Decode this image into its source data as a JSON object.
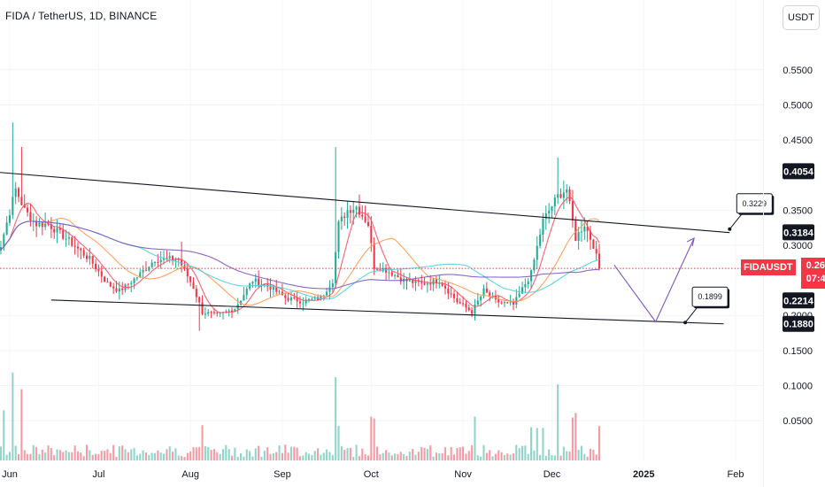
{
  "header": {
    "title": "FIDA / TetherUS, 1D, BINANCE",
    "currency": "USDT"
  },
  "chart_data": {
    "type": "candlestick",
    "symbol": "FIDAUSDT",
    "ylim": [
      0.03,
      0.58
    ],
    "y_ticks": [
      "0.5500",
      "0.5000",
      "0.4500",
      "0.3500",
      "0.3000",
      "0.2000",
      "0.1500",
      "0.1000",
      "0.0500"
    ],
    "x_ticks": [
      "Jun",
      "Jul",
      "Aug",
      "Sep",
      "Oct",
      "Nov",
      "Dec",
      "2025",
      "Feb"
    ],
    "price_tags": [
      {
        "label": "0.4054",
        "value": 0.4054,
        "color": "#131722"
      },
      {
        "label": "0.3184",
        "value": 0.3184,
        "color": "#131722"
      },
      {
        "label": "0.2214",
        "value": 0.2214,
        "color": "#131722"
      },
      {
        "label": "0.1880",
        "value": 0.188,
        "color": "#131722"
      }
    ],
    "current": {
      "symbol": "FIDAUSDT",
      "price": "0.2670",
      "countdown": "07:44:02",
      "value": 0.267,
      "color": "#f23645"
    },
    "channel": {
      "upper": [
        {
          "date": "2024-05-25",
          "value": 0.405
        },
        {
          "date": "2025-01-30",
          "value": 0.318
        }
      ],
      "lower": [
        {
          "date": "2024-06-15",
          "value": 0.222
        },
        {
          "date": "2025-01-28",
          "value": 0.188
        }
      ]
    },
    "projection": [
      {
        "date": "2024-12-22",
        "value": 0.272
      },
      {
        "date": "2025-01-05",
        "value": 0.191
      },
      {
        "date": "2025-01-18",
        "value": 0.31
      }
    ],
    "callouts": [
      {
        "label": "0.3229",
        "date": "2025-01-30",
        "value": 0.3229
      },
      {
        "label": "0.1899",
        "date": "2025-01-15",
        "value": 0.1899
      }
    ],
    "colors": {
      "up": "#22ab94",
      "down": "#f23645",
      "ma_fast": "#f7525f",
      "ma_mid": "#ff9850",
      "ma_slow_a": "#4dd0e1",
      "ma_slow_b": "#7e57c2",
      "projection": "#7e57c2",
      "channel": "#131722"
    },
    "anchors": [
      [
        "2024-05-26",
        0.29
      ],
      [
        "2024-05-29",
        0.3
      ],
      [
        "2024-06-03",
        0.38
      ],
      [
        "2024-06-06",
        0.35
      ],
      [
        "2024-06-10",
        0.33
      ],
      [
        "2024-06-14",
        0.33
      ],
      [
        "2024-06-20",
        0.31
      ],
      [
        "2024-06-28",
        0.28
      ],
      [
        "2024-07-04",
        0.245
      ],
      [
        "2024-07-08",
        0.235
      ],
      [
        "2024-07-14",
        0.255
      ],
      [
        "2024-07-20",
        0.28
      ],
      [
        "2024-07-28",
        0.28
      ],
      [
        "2024-08-02",
        0.24
      ],
      [
        "2024-08-05",
        0.205
      ],
      [
        "2024-08-10",
        0.2
      ],
      [
        "2024-08-16",
        0.21
      ],
      [
        "2024-08-22",
        0.25
      ],
      [
        "2024-08-28",
        0.24
      ],
      [
        "2024-09-02",
        0.225
      ],
      [
        "2024-09-08",
        0.22
      ],
      [
        "2024-09-14",
        0.225
      ],
      [
        "2024-09-18",
        0.25
      ],
      [
        "2024-09-20",
        0.33
      ],
      [
        "2024-09-23",
        0.35
      ],
      [
        "2024-09-26",
        0.355
      ],
      [
        "2024-09-30",
        0.33
      ],
      [
        "2024-10-02",
        0.27
      ],
      [
        "2024-10-06",
        0.265
      ],
      [
        "2024-10-12",
        0.25
      ],
      [
        "2024-10-18",
        0.245
      ],
      [
        "2024-10-24",
        0.25
      ],
      [
        "2024-10-30",
        0.22
      ],
      [
        "2024-11-04",
        0.205
      ],
      [
        "2024-11-08",
        0.235
      ],
      [
        "2024-11-12",
        0.22
      ],
      [
        "2024-11-18",
        0.215
      ],
      [
        "2024-11-24",
        0.26
      ],
      [
        "2024-11-28",
        0.335
      ],
      [
        "2024-12-03",
        0.37
      ],
      [
        "2024-12-06",
        0.38
      ],
      [
        "2024-12-09",
        0.31
      ],
      [
        "2024-12-12",
        0.33
      ],
      [
        "2024-12-15",
        0.3
      ],
      [
        "2024-12-17",
        0.267
      ]
    ]
  }
}
